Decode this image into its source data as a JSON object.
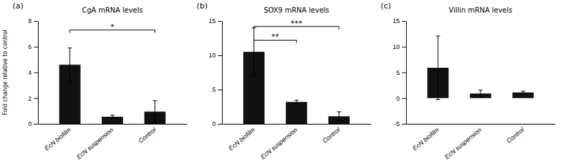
{
  "chart_data": [
    {
      "type": "bar",
      "subtitle": "(a)",
      "title": "CgA mRNA levels",
      "ylabel": "Fold change relative to control",
      "categories": [
        "EcN biofilm",
        "EcN suspension",
        "Control"
      ],
      "values": [
        4.6,
        0.55,
        0.95
      ],
      "errors": [
        1.3,
        0.12,
        0.85
      ],
      "color": "#111111",
      "ylim": [
        0,
        8
      ],
      "yticks": [
        0,
        2,
        4,
        6,
        8
      ],
      "grid": false,
      "annotations": [
        {
          "text": "*",
          "x1": "EcN biofilm",
          "x2": "Control",
          "y": 7.3
        }
      ]
    },
    {
      "type": "bar",
      "subtitle": "(b)",
      "title": "SOX9 mRNA levels",
      "categories": [
        "EcN biofilm",
        "EcN suspension",
        "Control"
      ],
      "values": [
        10.5,
        3.2,
        1.1
      ],
      "errors": [
        3.5,
        0.25,
        0.65
      ],
      "color": "#111111",
      "ylim": [
        0,
        15
      ],
      "yticks": [
        0,
        5,
        10,
        15
      ],
      "grid": false,
      "annotations": [
        {
          "text": "***",
          "x1": "EcN biofilm",
          "x2": "Control",
          "y": 14.2
        },
        {
          "text": "**",
          "x1": "EcN biofilm",
          "x2": "EcN suspension",
          "y": 12.2
        }
      ]
    },
    {
      "type": "bar",
      "subtitle": "(c)",
      "title": "Villin mRNA levels",
      "categories": [
        "EcN biofilm",
        "EcN suspension",
        "Control"
      ],
      "values": [
        5.9,
        0.9,
        1.1
      ],
      "errors": [
        6.2,
        0.65,
        0.25
      ],
      "color": "#111111",
      "ylim": [
        -5,
        15
      ],
      "yticks": [
        -5,
        0,
        5,
        10,
        15
      ],
      "grid": false,
      "annotations": []
    }
  ]
}
